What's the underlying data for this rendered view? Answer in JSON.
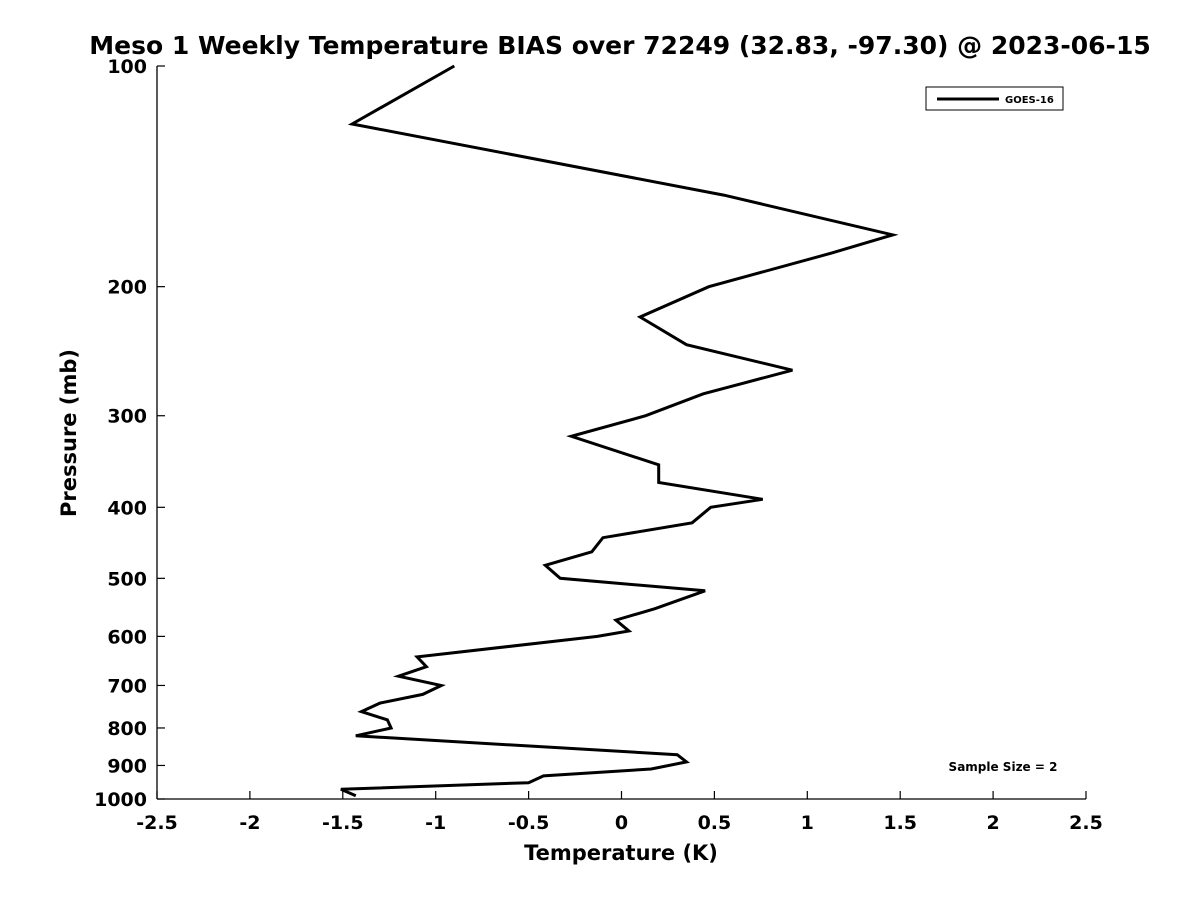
{
  "chart_data": {
    "type": "line",
    "title": "Meso 1 Weekly Temperature BIAS over 72249 (32.83, -97.30) @ 2023-06-15",
    "xlabel": "Temperature (K)",
    "ylabel": "Pressure (mb)",
    "xlim": [
      -2.5,
      2.5
    ],
    "ylim": [
      1000,
      100
    ],
    "y_scale": "log",
    "y_reversed": true,
    "x_ticks": [
      -2.5,
      -2,
      -1.5,
      -1,
      -0.5,
      0,
      0.5,
      1,
      1.5,
      2,
      2.5
    ],
    "x_tick_labels": [
      "-2.5",
      "-2",
      "-1.5",
      "-1",
      "-0.5",
      "0",
      "0.5",
      "1",
      "1.5",
      "2",
      "2.5"
    ],
    "y_ticks": [
      100,
      200,
      300,
      400,
      500,
      600,
      700,
      800,
      900,
      1000
    ],
    "y_tick_labels": [
      "100",
      "200",
      "300",
      "400",
      "500",
      "600",
      "700",
      "800",
      "900",
      "1000"
    ],
    "grid": false,
    "legend_position": "top-right",
    "series": [
      {
        "name": "GOES-16",
        "color": "#000000",
        "points": [
          [
            -0.9,
            100
          ],
          [
            -1.45,
            120
          ],
          [
            0.55,
            150
          ],
          [
            1.46,
            170
          ],
          [
            1.13,
            180
          ],
          [
            0.47,
            200
          ],
          [
            0.1,
            220
          ],
          [
            0.35,
            240
          ],
          [
            0.92,
            260
          ],
          [
            0.44,
            280
          ],
          [
            0.13,
            300
          ],
          [
            -0.27,
            320
          ],
          [
            0.2,
            350
          ],
          [
            0.2,
            370
          ],
          [
            0.76,
            390
          ],
          [
            0.48,
            400
          ],
          [
            0.38,
            420
          ],
          [
            -0.1,
            440
          ],
          [
            -0.16,
            460
          ],
          [
            -0.41,
            480
          ],
          [
            -0.33,
            500
          ],
          [
            0.45,
            520
          ],
          [
            0.18,
            550
          ],
          [
            -0.03,
            570
          ],
          [
            0.04,
            590
          ],
          [
            -0.13,
            600
          ],
          [
            -1.1,
            640
          ],
          [
            -1.05,
            660
          ],
          [
            -1.2,
            680
          ],
          [
            -0.97,
            700
          ],
          [
            -1.07,
            720
          ],
          [
            -1.3,
            740
          ],
          [
            -1.4,
            760
          ],
          [
            -1.26,
            780
          ],
          [
            -1.24,
            800
          ],
          [
            -1.43,
            820
          ],
          [
            -0.38,
            850
          ],
          [
            0.3,
            870
          ],
          [
            0.35,
            890
          ],
          [
            0.16,
            910
          ],
          [
            -0.42,
            930
          ],
          [
            -0.5,
            950
          ],
          [
            -1.51,
            970
          ],
          [
            -1.43,
            990
          ]
        ]
      }
    ],
    "annotations": [
      {
        "text": "Sample Size = 2"
      }
    ]
  }
}
